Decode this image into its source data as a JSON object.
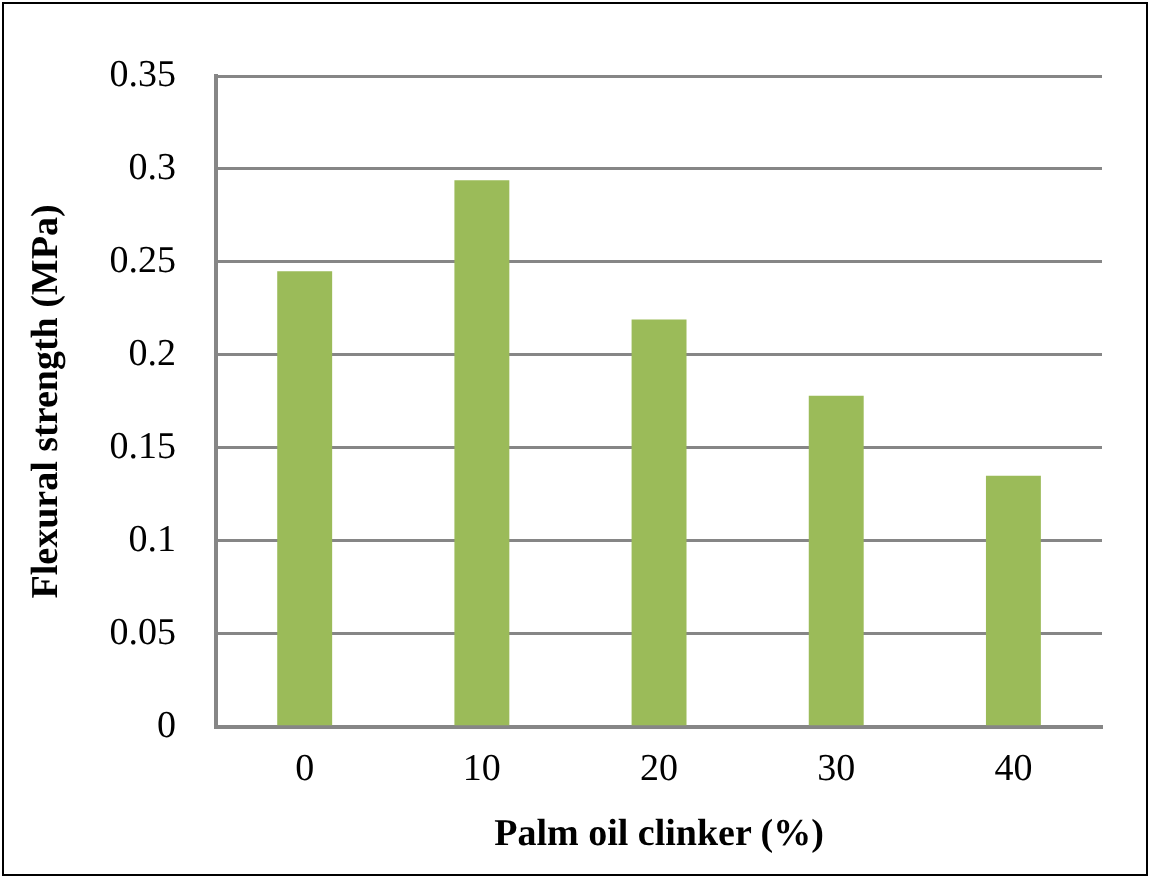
{
  "chart_data": {
    "type": "bar",
    "xlabel": "Palm oil clinker (%)",
    "ylabel": "Flexural strength (MPa)",
    "categories": [
      "0",
      "10",
      "20",
      "30",
      "40"
    ],
    "values": [
      0.245,
      0.294,
      0.219,
      0.178,
      0.135
    ],
    "color": "#9bbb59",
    "ylim": [
      0,
      0.35
    ],
    "yticks": [
      0,
      0.05,
      0.1,
      0.15,
      0.2,
      0.25,
      0.3,
      0.35
    ],
    "grid": "y",
    "legend": false
  }
}
